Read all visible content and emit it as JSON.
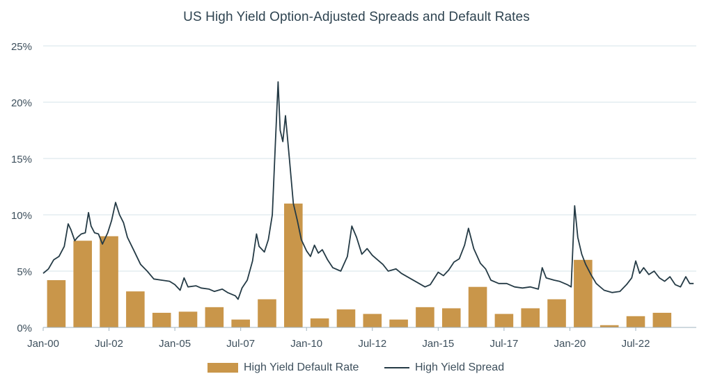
{
  "chart_data": {
    "type": "bar+line",
    "title": "US High Yield Option-Adjusted Spreads and Default Rates",
    "y_axis": {
      "min": 0,
      "max": 25,
      "ticks": [
        "0%",
        "5%",
        "10%",
        "15%",
        "20%",
        "25%"
      ],
      "tick_values": [
        0,
        5,
        10,
        15,
        20,
        25
      ]
    },
    "x_axis": {
      "start_year": 2000.0,
      "end_year": 2024.8,
      "ticks": [
        {
          "label": "Jan-00",
          "year": 2000.0
        },
        {
          "label": "Jul-02",
          "year": 2002.5
        },
        {
          "label": "Jan-05",
          "year": 2005.0
        },
        {
          "label": "Jul-07",
          "year": 2007.5
        },
        {
          "label": "Jan-10",
          "year": 2010.0
        },
        {
          "label": "Jul-12",
          "year": 2012.5
        },
        {
          "label": "Jan-15",
          "year": 2015.0
        },
        {
          "label": "Jul-17",
          "year": 2017.5
        },
        {
          "label": "Jan-20",
          "year": 2020.0
        },
        {
          "label": "Jul-22",
          "year": 2022.5
        }
      ]
    },
    "grid": true,
    "legend_position": "bottom",
    "series": [
      {
        "name": "High Yield Default Rate",
        "kind": "bar",
        "color": "#c9964a",
        "points": [
          {
            "year": 2000,
            "value": 4.2
          },
          {
            "year": 2001,
            "value": 7.7
          },
          {
            "year": 2002,
            "value": 8.1
          },
          {
            "year": 2003,
            "value": 3.2
          },
          {
            "year": 2004,
            "value": 1.3
          },
          {
            "year": 2005,
            "value": 1.4
          },
          {
            "year": 2006,
            "value": 1.8
          },
          {
            "year": 2007,
            "value": 0.7
          },
          {
            "year": 2008,
            "value": 2.5
          },
          {
            "year": 2009,
            "value": 11.0
          },
          {
            "year": 2010,
            "value": 0.8
          },
          {
            "year": 2011,
            "value": 1.6
          },
          {
            "year": 2012,
            "value": 1.2
          },
          {
            "year": 2013,
            "value": 0.7
          },
          {
            "year": 2014,
            "value": 1.8
          },
          {
            "year": 2015,
            "value": 1.7
          },
          {
            "year": 2016,
            "value": 3.6
          },
          {
            "year": 2017,
            "value": 1.2
          },
          {
            "year": 2018,
            "value": 1.7
          },
          {
            "year": 2019,
            "value": 2.5
          },
          {
            "year": 2020,
            "value": 6.0
          },
          {
            "year": 2021,
            "value": 0.2
          },
          {
            "year": 2022,
            "value": 1.0
          },
          {
            "year": 2023,
            "value": 1.3
          }
        ]
      },
      {
        "name": "High Yield Spread",
        "kind": "line",
        "color": "#243a45",
        "points": [
          [
            2000.0,
            4.8
          ],
          [
            2000.2,
            5.2
          ],
          [
            2000.4,
            6.0
          ],
          [
            2000.6,
            6.3
          ],
          [
            2000.8,
            7.2
          ],
          [
            2000.95,
            9.2
          ],
          [
            2001.05,
            8.7
          ],
          [
            2001.2,
            7.7
          ],
          [
            2001.3,
            8.0
          ],
          [
            2001.45,
            8.3
          ],
          [
            2001.6,
            8.4
          ],
          [
            2001.72,
            10.2
          ],
          [
            2001.82,
            9.0
          ],
          [
            2001.95,
            8.4
          ],
          [
            2002.1,
            8.3
          ],
          [
            2002.25,
            7.4
          ],
          [
            2002.45,
            8.4
          ],
          [
            2002.6,
            9.5
          ],
          [
            2002.75,
            11.1
          ],
          [
            2002.9,
            10.0
          ],
          [
            2003.05,
            9.3
          ],
          [
            2003.2,
            8.0
          ],
          [
            2003.45,
            6.8
          ],
          [
            2003.7,
            5.6
          ],
          [
            2003.95,
            5.0
          ],
          [
            2004.2,
            4.3
          ],
          [
            2004.5,
            4.2
          ],
          [
            2004.8,
            4.1
          ],
          [
            2005.0,
            3.8
          ],
          [
            2005.2,
            3.3
          ],
          [
            2005.35,
            4.4
          ],
          [
            2005.5,
            3.6
          ],
          [
            2005.8,
            3.7
          ],
          [
            2006.0,
            3.5
          ],
          [
            2006.3,
            3.4
          ],
          [
            2006.5,
            3.2
          ],
          [
            2006.8,
            3.4
          ],
          [
            2007.0,
            3.1
          ],
          [
            2007.3,
            2.8
          ],
          [
            2007.4,
            2.5
          ],
          [
            2007.55,
            3.5
          ],
          [
            2007.75,
            4.2
          ],
          [
            2007.95,
            5.9
          ],
          [
            2008.1,
            8.3
          ],
          [
            2008.2,
            7.2
          ],
          [
            2008.4,
            6.7
          ],
          [
            2008.55,
            7.8
          ],
          [
            2008.7,
            10.0
          ],
          [
            2008.82,
            16.5
          ],
          [
            2008.92,
            21.8
          ],
          [
            2009.0,
            17.5
          ],
          [
            2009.1,
            16.5
          ],
          [
            2009.2,
            18.8
          ],
          [
            2009.35,
            15.0
          ],
          [
            2009.5,
            11.0
          ],
          [
            2009.65,
            9.5
          ],
          [
            2009.8,
            7.8
          ],
          [
            2010.0,
            6.8
          ],
          [
            2010.15,
            6.3
          ],
          [
            2010.3,
            7.3
          ],
          [
            2010.45,
            6.6
          ],
          [
            2010.6,
            6.9
          ],
          [
            2010.8,
            6.0
          ],
          [
            2011.0,
            5.3
          ],
          [
            2011.3,
            5.0
          ],
          [
            2011.55,
            6.3
          ],
          [
            2011.72,
            9.0
          ],
          [
            2011.9,
            8.0
          ],
          [
            2012.1,
            6.5
          ],
          [
            2012.3,
            7.0
          ],
          [
            2012.5,
            6.4
          ],
          [
            2012.7,
            6.0
          ],
          [
            2012.9,
            5.6
          ],
          [
            2013.1,
            5.0
          ],
          [
            2013.4,
            5.2
          ],
          [
            2013.6,
            4.8
          ],
          [
            2013.9,
            4.4
          ],
          [
            2014.2,
            4.0
          ],
          [
            2014.5,
            3.6
          ],
          [
            2014.7,
            3.8
          ],
          [
            2015.0,
            4.9
          ],
          [
            2015.2,
            4.6
          ],
          [
            2015.4,
            5.1
          ],
          [
            2015.6,
            5.8
          ],
          [
            2015.8,
            6.1
          ],
          [
            2016.0,
            7.3
          ],
          [
            2016.15,
            8.8
          ],
          [
            2016.35,
            7.0
          ],
          [
            2016.6,
            5.7
          ],
          [
            2016.8,
            5.2
          ],
          [
            2017.0,
            4.2
          ],
          [
            2017.3,
            3.9
          ],
          [
            2017.6,
            3.9
          ],
          [
            2017.9,
            3.6
          ],
          [
            2018.2,
            3.5
          ],
          [
            2018.5,
            3.6
          ],
          [
            2018.8,
            3.4
          ],
          [
            2018.95,
            5.3
          ],
          [
            2019.1,
            4.4
          ],
          [
            2019.4,
            4.2
          ],
          [
            2019.6,
            4.1
          ],
          [
            2019.9,
            3.8
          ],
          [
            2020.05,
            3.6
          ],
          [
            2020.18,
            10.8
          ],
          [
            2020.3,
            8.0
          ],
          [
            2020.45,
            6.5
          ],
          [
            2020.6,
            5.6
          ],
          [
            2020.8,
            4.7
          ],
          [
            2021.0,
            3.9
          ],
          [
            2021.3,
            3.3
          ],
          [
            2021.6,
            3.1
          ],
          [
            2021.9,
            3.2
          ],
          [
            2022.15,
            3.8
          ],
          [
            2022.35,
            4.4
          ],
          [
            2022.5,
            5.9
          ],
          [
            2022.65,
            4.8
          ],
          [
            2022.8,
            5.3
          ],
          [
            2023.0,
            4.7
          ],
          [
            2023.2,
            5.0
          ],
          [
            2023.4,
            4.4
          ],
          [
            2023.6,
            4.1
          ],
          [
            2023.8,
            4.5
          ],
          [
            2024.0,
            3.8
          ],
          [
            2024.2,
            3.6
          ],
          [
            2024.4,
            4.5
          ],
          [
            2024.55,
            3.9
          ],
          [
            2024.7,
            3.9
          ]
        ]
      }
    ]
  }
}
